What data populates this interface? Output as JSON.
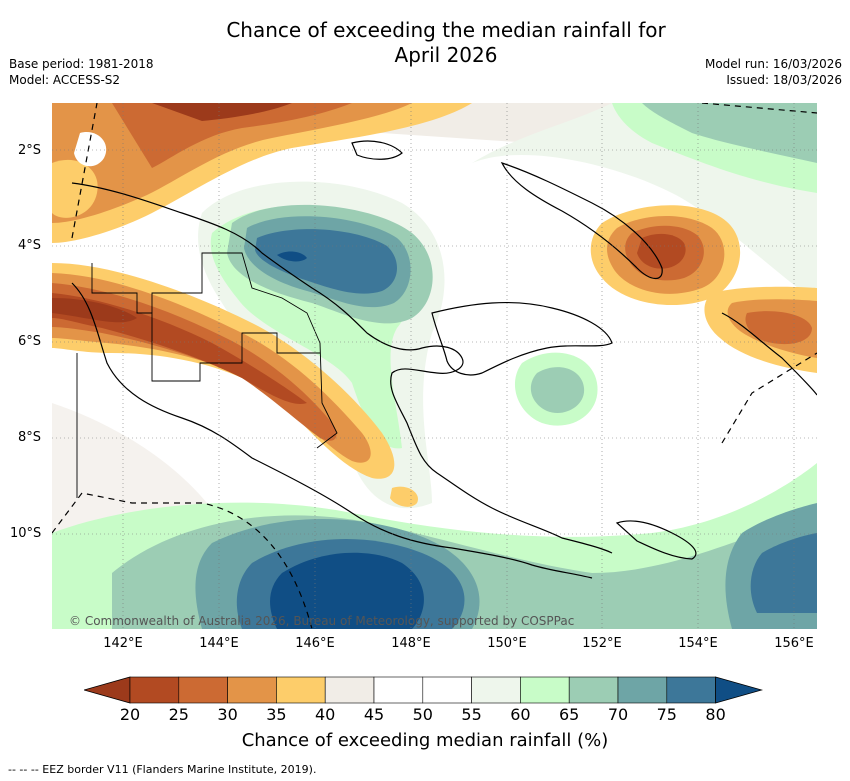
{
  "title_line1": "Chance of exceeding the median rainfall for",
  "title_line2": "April 2026",
  "meta": {
    "base_period": "Base period: 1981-2018",
    "model": "Model: ACCESS-S2",
    "model_run": "Model run: 16/03/2026",
    "issued": "Issued: 18/03/2026"
  },
  "attribution": "© Commonwealth of Australia 2026, Bureau of Meteorology, supported by COSPPac",
  "latitude_labels": [
    "2°S",
    "4°S",
    "6°S",
    "8°S",
    "10°S"
  ],
  "longitude_labels": [
    "142°E",
    "144°E",
    "146°E",
    "148°E",
    "150°E",
    "152°E",
    "154°E",
    "156°E"
  ],
  "colorbar": {
    "title": "Chance of exceeding median rainfall (%)",
    "ticks": [
      "20",
      "25",
      "30",
      "35",
      "40",
      "45",
      "50",
      "55",
      "60",
      "65",
      "70",
      "75",
      "80"
    ],
    "colors": [
      "#9c3a1b",
      "#b24a22",
      "#cc6a33",
      "#e39448",
      "#fdcd6a",
      "#f1ede7",
      "#ffffff",
      "#ffffff",
      "#eef6ec",
      "#c8fcc8",
      "#9ccdb4",
      "#6ea5a6",
      "#3d7799",
      "#104e85"
    ]
  },
  "legend_note": "--  --  -- EEZ border V11 (Flanders Marine Institute, 2019)."
}
